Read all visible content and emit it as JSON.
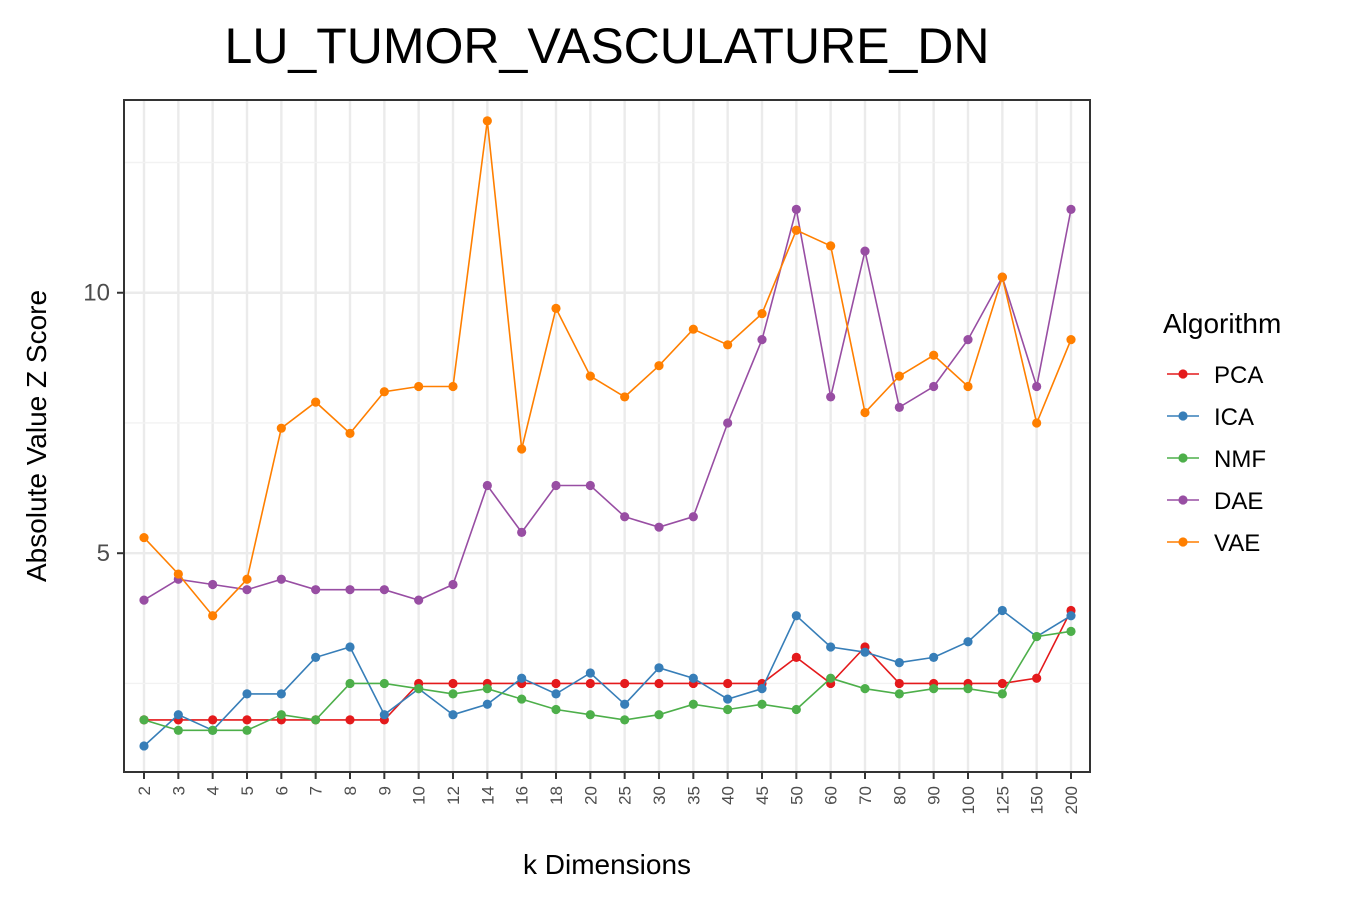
{
  "chart_data": {
    "type": "line",
    "title": "LU_TUMOR_VASCULATURE_DN",
    "xlabel": "k Dimensions",
    "ylabel": "Absolute Value Z Score",
    "categories": [
      "2",
      "3",
      "4",
      "5",
      "6",
      "7",
      "8",
      "9",
      "10",
      "12",
      "14",
      "16",
      "18",
      "20",
      "25",
      "30",
      "35",
      "40",
      "45",
      "50",
      "60",
      "70",
      "80",
      "90",
      "100",
      "125",
      "150",
      "200"
    ],
    "ylim": [
      0.8,
      13.7
    ],
    "yticks": [
      5,
      10
    ],
    "grid": true,
    "legend": {
      "title": "Algorithm",
      "position": "right"
    },
    "series": [
      {
        "name": "PCA",
        "color": "#E41A1C",
        "values": [
          1.8,
          1.8,
          1.8,
          1.8,
          1.8,
          1.8,
          1.8,
          1.8,
          2.5,
          2.5,
          2.5,
          2.5,
          2.5,
          2.5,
          2.5,
          2.5,
          2.5,
          2.5,
          2.5,
          3.0,
          2.5,
          3.2,
          2.5,
          2.5,
          2.5,
          2.5,
          2.6,
          3.9
        ]
      },
      {
        "name": "ICA",
        "color": "#377EB8",
        "values": [
          1.3,
          1.9,
          1.6,
          2.3,
          2.3,
          3.0,
          3.2,
          1.9,
          2.4,
          1.9,
          2.1,
          2.6,
          2.3,
          2.7,
          2.1,
          2.8,
          2.6,
          2.2,
          2.4,
          3.8,
          3.2,
          3.1,
          2.9,
          3.0,
          3.3,
          3.9,
          3.4,
          3.8
        ]
      },
      {
        "name": "NMF",
        "color": "#4DAF4A",
        "values": [
          1.8,
          1.6,
          1.6,
          1.6,
          1.9,
          1.8,
          2.5,
          2.5,
          2.4,
          2.3,
          2.4,
          2.2,
          2.0,
          1.9,
          1.8,
          1.9,
          2.1,
          2.0,
          2.1,
          2.0,
          2.6,
          2.4,
          2.3,
          2.4,
          2.4,
          2.3,
          3.4,
          3.5
        ]
      },
      {
        "name": "DAE",
        "color": "#984EA3",
        "values": [
          4.1,
          4.5,
          4.4,
          4.3,
          4.5,
          4.3,
          4.3,
          4.3,
          4.1,
          4.4,
          6.3,
          5.4,
          6.3,
          6.3,
          5.7,
          5.5,
          5.7,
          7.5,
          9.1,
          11.6,
          8.0,
          10.8,
          7.8,
          8.2,
          9.1,
          10.3,
          8.2,
          11.6
        ]
      },
      {
        "name": "VAE",
        "color": "#FF7F00",
        "values": [
          5.3,
          4.6,
          3.8,
          4.5,
          7.4,
          7.9,
          7.3,
          8.1,
          8.2,
          8.2,
          13.3,
          7.0,
          9.7,
          8.4,
          8.0,
          8.6,
          9.3,
          9.0,
          9.6,
          11.2,
          10.9,
          7.7,
          8.4,
          8.8,
          8.2,
          10.3,
          7.5,
          9.1
        ]
      }
    ]
  }
}
